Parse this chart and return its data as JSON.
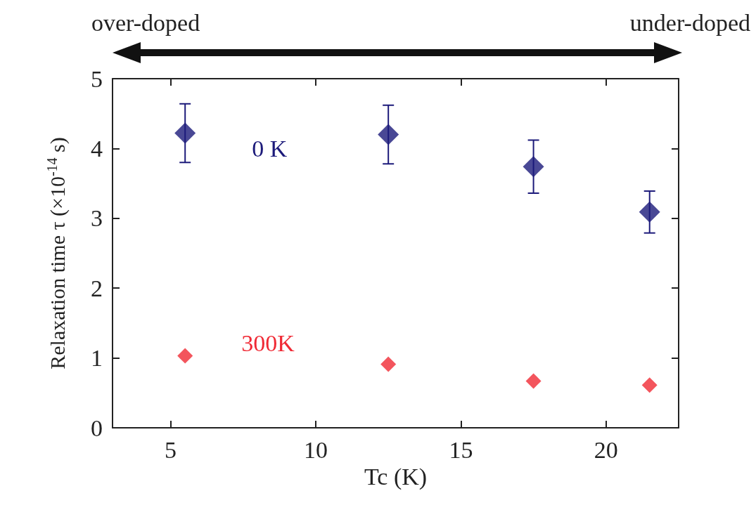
{
  "chart_data": {
    "type": "scatter",
    "xlabel": "Tc (K)",
    "ylabel": "Relaxation time τ (×10$^{-14}$ s)",
    "x": [
      5.5,
      12.5,
      17.5,
      21.5
    ],
    "series": [
      {
        "name": "0 K",
        "color": "#1c1a7a",
        "values": [
          4.22,
          4.2,
          3.74,
          3.09
        ],
        "errors": [
          0.42,
          0.42,
          0.38,
          0.3
        ]
      },
      {
        "name": "300K",
        "color": "#f02a35",
        "values": [
          1.03,
          0.91,
          0.67,
          0.61
        ]
      }
    ],
    "annotations": [
      "over-doped",
      "under-doped"
    ],
    "xlim": [
      3,
      22.5
    ],
    "xticks": [
      5,
      10,
      15,
      20
    ],
    "ylim": [
      0,
      5
    ],
    "yticks": [
      0,
      1,
      2,
      3,
      4,
      5
    ],
    "grid": false,
    "legend": false,
    "marker": "diamond"
  }
}
